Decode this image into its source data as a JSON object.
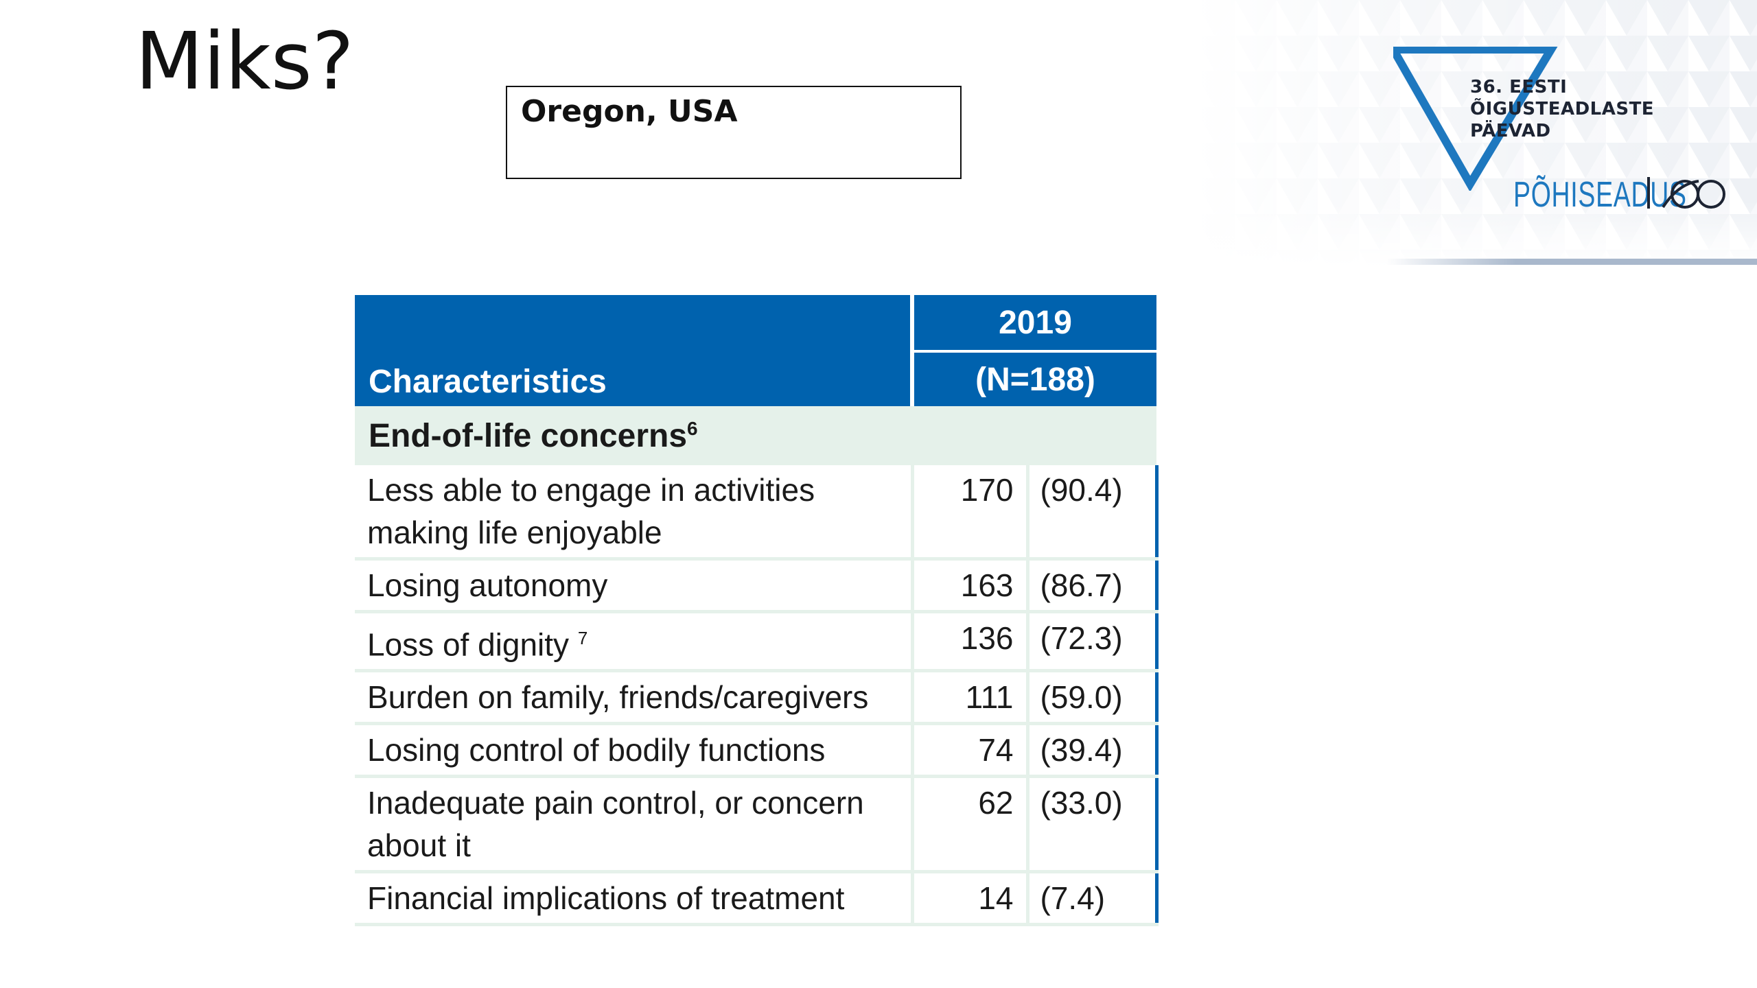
{
  "slide": {
    "title": "Miks?",
    "location_label": "Oregon, USA"
  },
  "logo": {
    "line1": "36. EESTI",
    "line2": "ÕIGUSTEADLASTE",
    "line3": "PÄEVAD",
    "brand": "PÕHISEADUS",
    "number": "100",
    "colors": {
      "triangle": "#1e78bf",
      "brand": "#1e78bf",
      "text": "#1d2433"
    }
  },
  "table": {
    "header": {
      "characteristics": "Characteristics",
      "year": "2019",
      "n": "(N=188)"
    },
    "section": {
      "label": "End-of-life concerns",
      "footnote": "6"
    },
    "rows": [
      {
        "label": "Less able to engage in activities making life enjoyable",
        "footnote": "",
        "count": "170",
        "percent": "(90.4)"
      },
      {
        "label": "Losing autonomy",
        "footnote": "",
        "count": "163",
        "percent": "(86.7)"
      },
      {
        "label": "Loss of dignity",
        "footnote": "7",
        "count": "136",
        "percent": "(72.3)"
      },
      {
        "label": "Burden on family, friends/caregivers",
        "footnote": "",
        "count": "111",
        "percent": "(59.0)"
      },
      {
        "label": "Losing control of bodily functions",
        "footnote": "",
        "count": "74",
        "percent": "(39.4)"
      },
      {
        "label": "Inadequate pain control, or concern about it",
        "footnote": "",
        "count": "62",
        "percent": "(33.0)"
      },
      {
        "label": "Financial implications of treatment",
        "footnote": "",
        "count": "14",
        "percent": "(7.4)"
      }
    ],
    "colors": {
      "header_bg": "#0062ae",
      "section_bg": "#e5f1ea"
    }
  }
}
